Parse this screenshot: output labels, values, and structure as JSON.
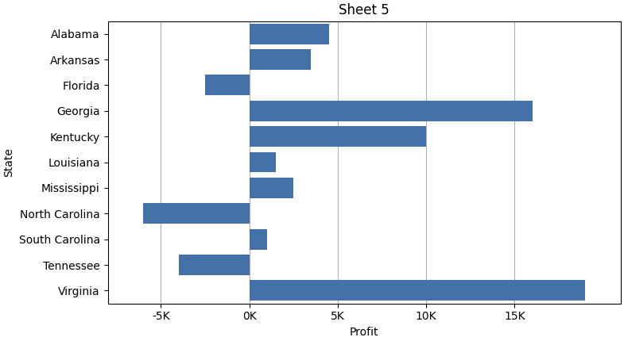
{
  "chart_data": {
    "type": "bar",
    "orientation": "horizontal",
    "title": "Sheet 5",
    "xlabel": "Profit",
    "ylabel": "State",
    "categories": [
      "Alabama",
      "Arkansas",
      "Florida",
      "Georgia",
      "Kentucky",
      "Louisiana",
      "Mississippi",
      "North Carolina",
      "South Carolina",
      "Tennessee",
      "Virginia"
    ],
    "values": [
      4500,
      3500,
      -2500,
      16000,
      10000,
      1500,
      2500,
      -6000,
      1000,
      -4000,
      19000
    ],
    "color": "#4472a8",
    "xlim": [
      -8000,
      21000
    ],
    "xticks": [
      {
        "value": -5000,
        "label": "-5K"
      },
      {
        "value": 0,
        "label": "0K"
      },
      {
        "value": 5000,
        "label": "5K"
      },
      {
        "value": 10000,
        "label": "10K"
      },
      {
        "value": 15000,
        "label": "15K"
      }
    ],
    "grid": true
  }
}
